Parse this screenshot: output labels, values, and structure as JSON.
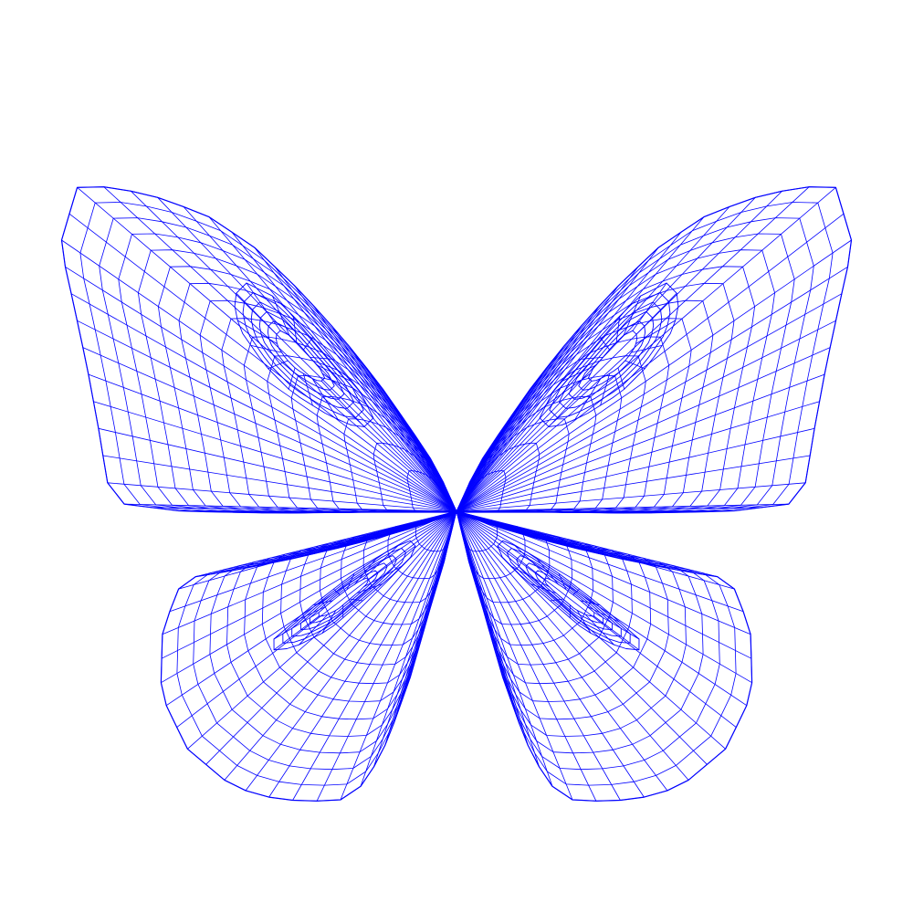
{
  "figure": {
    "subject": "butterfly",
    "style": "wireframe-mesh",
    "stroke_color": "#0000ff",
    "background_color": "#ffffff",
    "wings": [
      {
        "id": "upper-left",
        "radial_lines": 44,
        "concentric_rings": 16
      },
      {
        "id": "upper-right",
        "radial_lines": 44,
        "concentric_rings": 16
      },
      {
        "id": "lower-left",
        "radial_lines": 40,
        "concentric_rings": 14
      },
      {
        "id": "lower-right",
        "radial_lines": 40,
        "concentric_rings": 14
      }
    ]
  }
}
